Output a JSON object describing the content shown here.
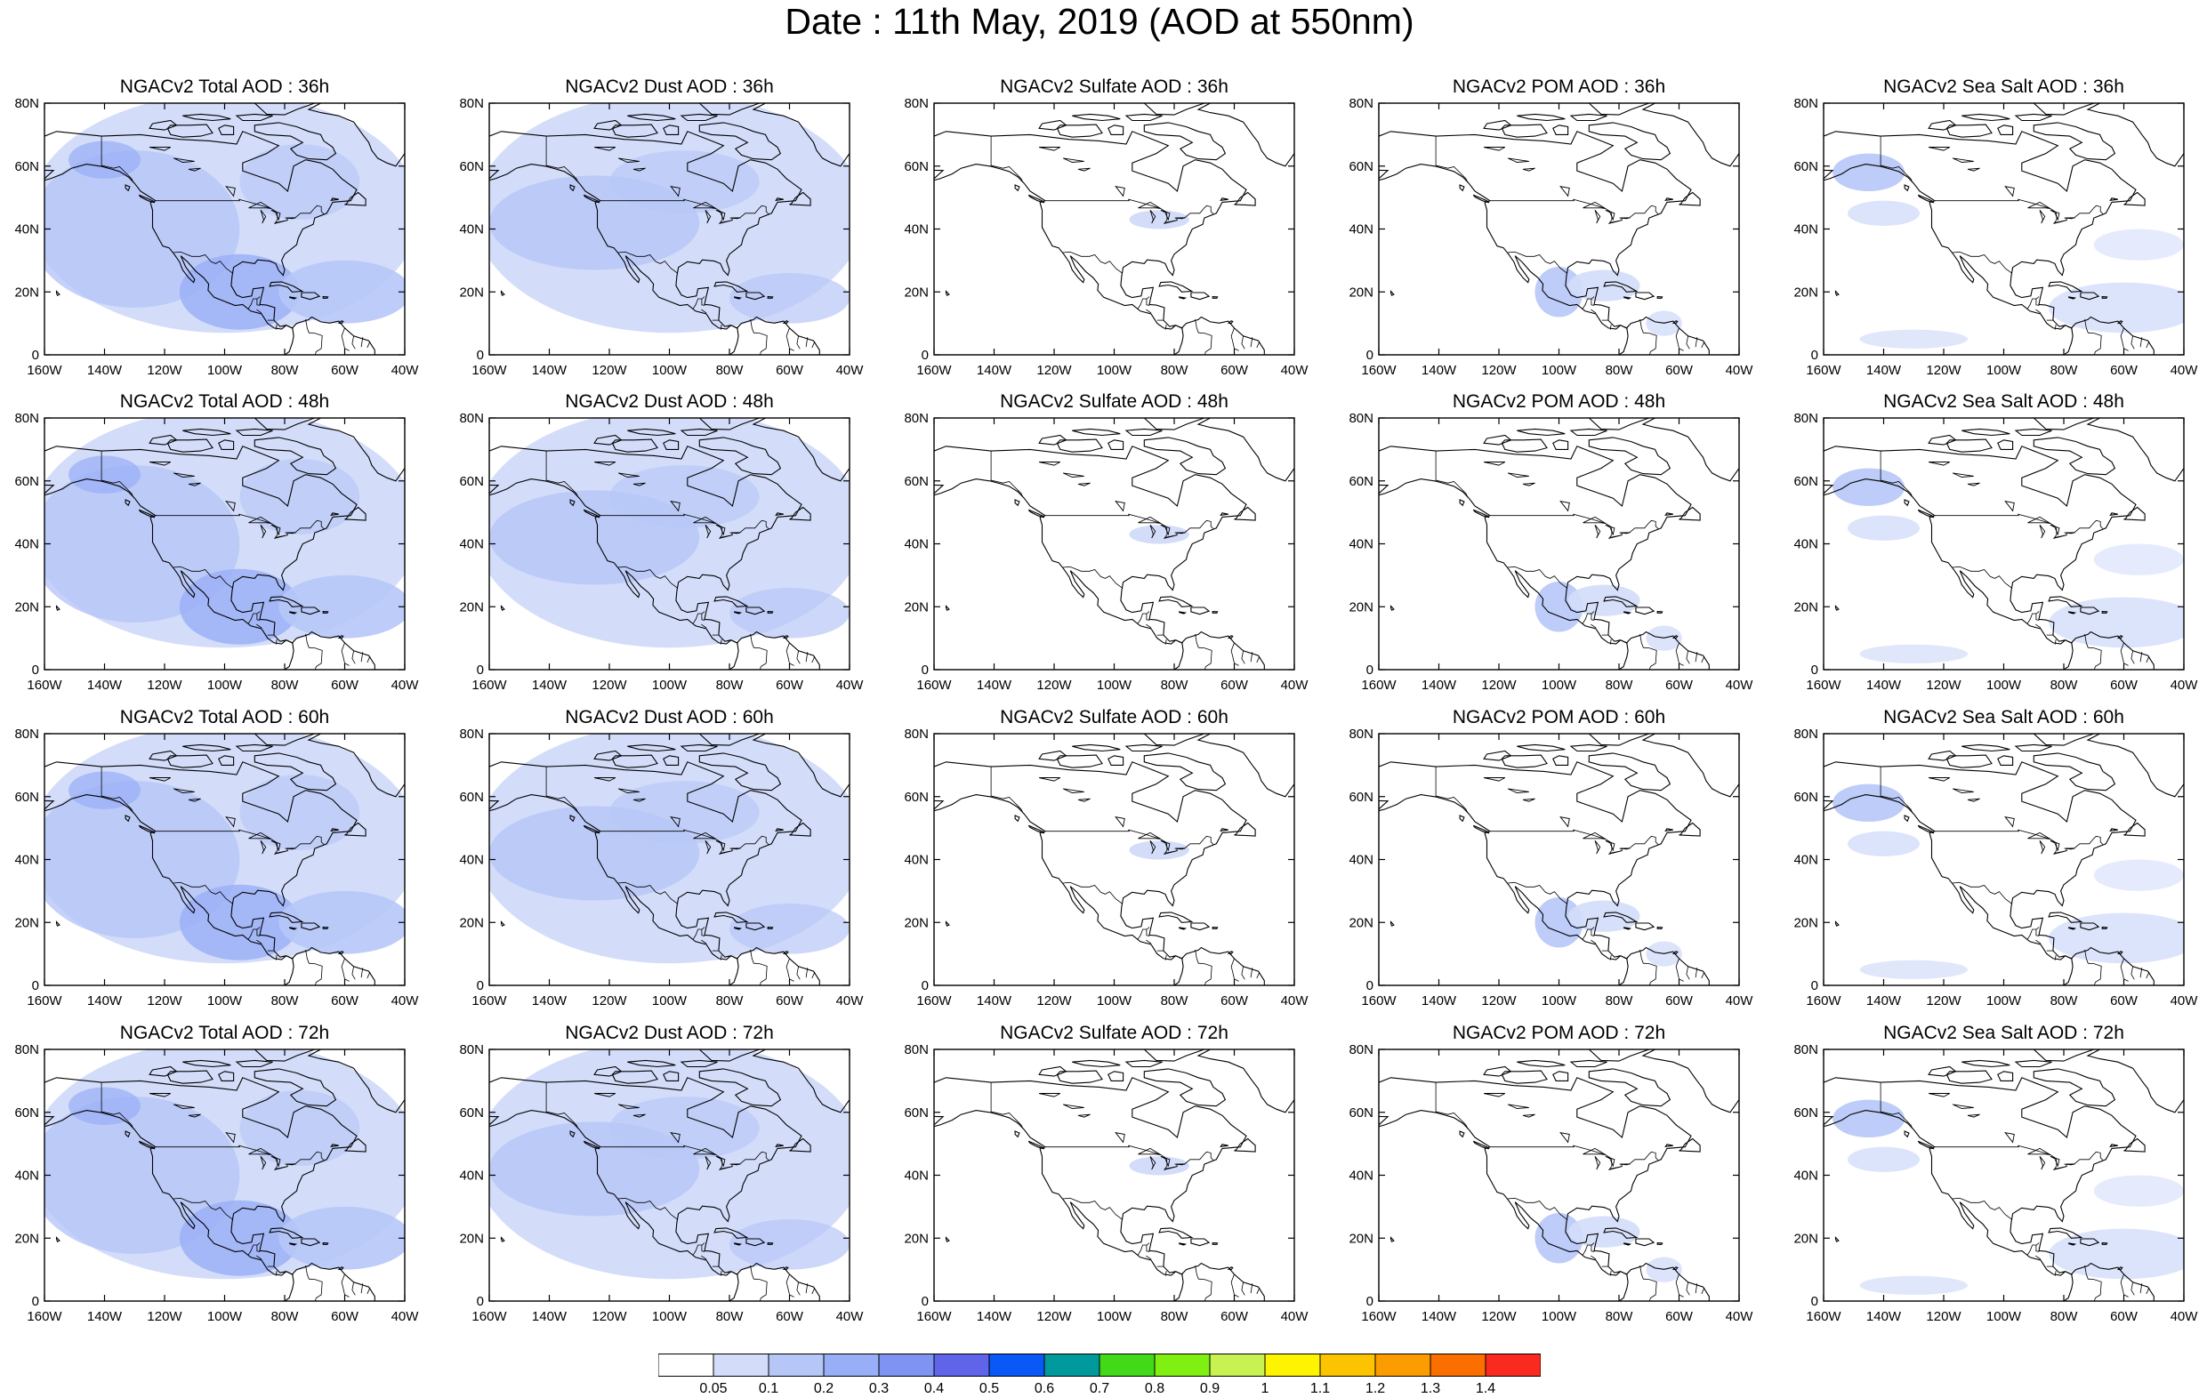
{
  "title": "Date : 11th May, 2019 (AOD at 550nm)",
  "lat_ticks": [
    "0",
    "20N",
    "40N",
    "60N",
    "80N"
  ],
  "lon_ticks": [
    "160W",
    "140W",
    "120W",
    "100W",
    "80W",
    "60W",
    "40W"
  ],
  "map_extent": {
    "lon": [
      -160,
      -40
    ],
    "lat": [
      0,
      80
    ]
  },
  "species": [
    {
      "key": "total",
      "prefix": "NGACv2 Total AOD"
    },
    {
      "key": "dust",
      "prefix": "NGACv2 Dust AOD"
    },
    {
      "key": "sulfate",
      "prefix": "NGACv2 Sulfate AOD"
    },
    {
      "key": "pom",
      "prefix": "NGACv2 POM AOD"
    },
    {
      "key": "seasalt",
      "prefix": "NGACv2 Sea Salt AOD"
    }
  ],
  "forecast_hours": [
    "36h",
    "48h",
    "60h",
    "72h"
  ],
  "panels": [
    {
      "id": "total-36h",
      "title": "NGACv2 Total AOD : 36h"
    },
    {
      "id": "dust-36h",
      "title": "NGACv2 Dust AOD : 36h"
    },
    {
      "id": "sulfate-36h",
      "title": "NGACv2 Sulfate AOD : 36h"
    },
    {
      "id": "pom-36h",
      "title": "NGACv2 POM AOD : 36h"
    },
    {
      "id": "seasalt-36h",
      "title": "NGACv2 Sea Salt AOD : 36h"
    },
    {
      "id": "total-48h",
      "title": "NGACv2 Total AOD : 48h"
    },
    {
      "id": "dust-48h",
      "title": "NGACv2 Dust AOD : 48h"
    },
    {
      "id": "sulfate-48h",
      "title": "NGACv2 Sulfate AOD : 48h"
    },
    {
      "id": "pom-48h",
      "title": "NGACv2 POM AOD : 48h"
    },
    {
      "id": "seasalt-48h",
      "title": "NGACv2 Sea Salt AOD : 48h"
    },
    {
      "id": "total-60h",
      "title": "NGACv2 Total AOD : 60h"
    },
    {
      "id": "dust-60h",
      "title": "NGACv2 Dust AOD : 60h"
    },
    {
      "id": "sulfate-60h",
      "title": "NGACv2 Sulfate AOD : 60h"
    },
    {
      "id": "pom-60h",
      "title": "NGACv2 POM AOD : 60h"
    },
    {
      "id": "seasalt-60h",
      "title": "NGACv2 Sea Salt AOD : 60h"
    },
    {
      "id": "total-72h",
      "title": "NGACv2 Total AOD : 72h"
    },
    {
      "id": "dust-72h",
      "title": "NGACv2 Dust AOD : 72h"
    },
    {
      "id": "sulfate-72h",
      "title": "NGACv2 Sulfate AOD : 72h"
    },
    {
      "id": "pom-72h",
      "title": "NGACv2 POM AOD : 72h"
    },
    {
      "id": "seasalt-72h",
      "title": "NGACv2 Sea Salt  AOD : 72h"
    }
  ],
  "colorbar": {
    "colors": [
      "#ffffff",
      "#d3ddfa",
      "#b6c6f7",
      "#98aef6",
      "#7f93f3",
      "#5f64e8",
      "#0a58f5",
      "#009a9c",
      "#42d918",
      "#80ef12",
      "#c8f251",
      "#fef301",
      "#fcc300",
      "#fb9d00",
      "#fb6e00",
      "#fb2a1e"
    ],
    "labels": [
      "0.05",
      "0.1",
      "0.2",
      "0.3",
      "0.4",
      "0.5",
      "0.6",
      "0.7",
      "0.8",
      "0.9",
      "1",
      "1.1",
      "1.2",
      "1.3",
      "1.4"
    ]
  }
}
